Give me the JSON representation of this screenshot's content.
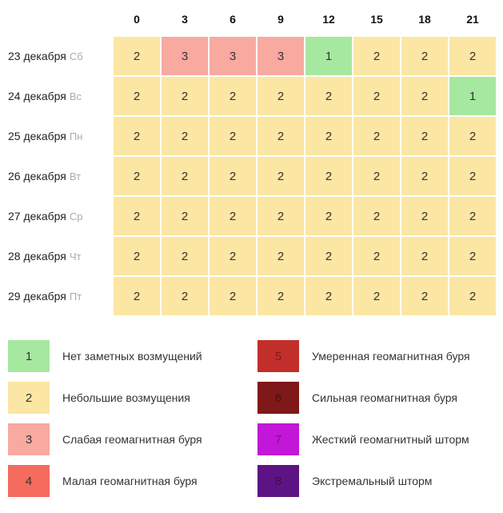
{
  "hours": [
    "0",
    "3",
    "6",
    "9",
    "12",
    "15",
    "18",
    "21"
  ],
  "rows": [
    {
      "date": "23 декабря",
      "dow": "Сб",
      "vals": [
        2,
        3,
        3,
        3,
        1,
        2,
        2,
        2
      ]
    },
    {
      "date": "24 декабря",
      "dow": "Вс",
      "vals": [
        2,
        2,
        2,
        2,
        2,
        2,
        2,
        1
      ]
    },
    {
      "date": "25 декабря",
      "dow": "Пн",
      "vals": [
        2,
        2,
        2,
        2,
        2,
        2,
        2,
        2
      ]
    },
    {
      "date": "26 декабря",
      "dow": "Вт",
      "vals": [
        2,
        2,
        2,
        2,
        2,
        2,
        2,
        2
      ]
    },
    {
      "date": "27 декабря",
      "dow": "Ср",
      "vals": [
        2,
        2,
        2,
        2,
        2,
        2,
        2,
        2
      ]
    },
    {
      "date": "28 декабря",
      "dow": "Чт",
      "vals": [
        2,
        2,
        2,
        2,
        2,
        2,
        2,
        2
      ]
    },
    {
      "date": "29 декабря",
      "dow": "Пт",
      "vals": [
        2,
        2,
        2,
        2,
        2,
        2,
        2,
        2
      ]
    }
  ],
  "level_colors": {
    "1": {
      "bg": "#a6e8a0",
      "fg": "#333333"
    },
    "2": {
      "bg": "#fbe6a3",
      "fg": "#333333"
    },
    "3": {
      "bg": "#f8a9a0",
      "fg": "#333333"
    },
    "4": {
      "bg": "#f56b5e",
      "fg": "#333333"
    },
    "5": {
      "bg": "#c22f2a",
      "fg": "#7a1e1a"
    },
    "6": {
      "bg": "#7f1818",
      "fg": "#4d0f0f"
    },
    "7": {
      "bg": "#c217d6",
      "fg": "#7c0e88"
    },
    "8": {
      "bg": "#5e1384",
      "fg": "#3b0c53"
    }
  },
  "legend": [
    {
      "level": 1,
      "label": "Нет заметных возмущений"
    },
    {
      "level": 5,
      "label": "Умеренная геомагнитная буря"
    },
    {
      "level": 2,
      "label": "Небольшие возмущения"
    },
    {
      "level": 6,
      "label": "Сильная геомагнитная буря"
    },
    {
      "level": 3,
      "label": "Слабая геомагнитная буря"
    },
    {
      "level": 7,
      "label": "Жесткий геомагнитный шторм"
    },
    {
      "level": 4,
      "label": "Малая геомагнитная буря"
    },
    {
      "level": 8,
      "label": "Экстремальный шторм"
    }
  ]
}
